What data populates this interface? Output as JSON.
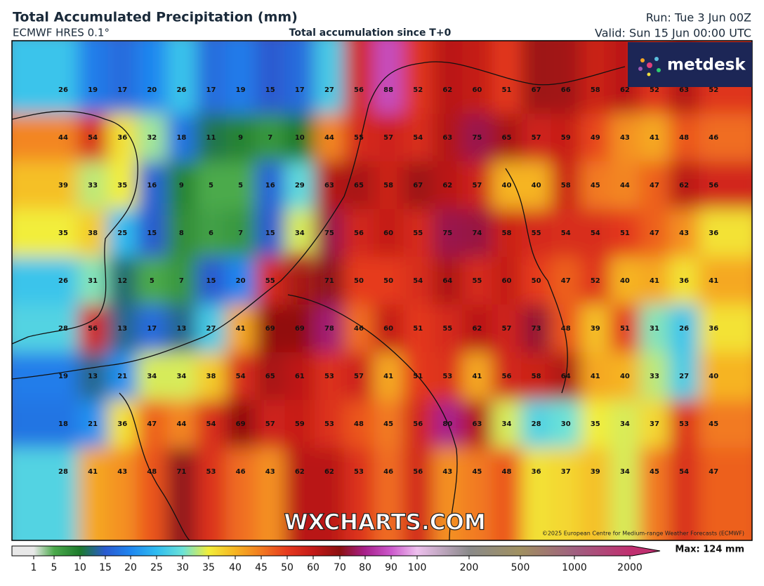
{
  "header": {
    "title": "Total Accumulated Precipitation (mm)",
    "model": "ECMWF HRES 0.1°",
    "subtitle": "Total accumulation since T+0",
    "run": "Run: Tue 3 Jun 00Z",
    "valid": "Valid: Sun 15 Jun 00:00 UTC"
  },
  "logo": "metdesk",
  "watermark": "WXCHARTS.COM",
  "copyright": "©2025 European Centre for Medium-range Weather Forecasts (ECMWF)",
  "grid": [
    [
      26,
      19,
      17,
      20,
      26,
      17,
      19,
      15,
      17,
      27,
      56,
      88,
      52,
      62,
      60,
      51,
      67,
      66,
      58,
      62,
      52,
      63,
      52
    ],
    [
      44,
      54,
      36,
      32,
      18,
      11,
      9,
      7,
      10,
      44,
      55,
      57,
      54,
      63,
      75,
      65,
      57,
      59,
      49,
      43,
      41,
      48,
      46
    ],
    [
      39,
      33,
      35,
      16,
      9,
      5,
      5,
      16,
      29,
      63,
      65,
      58,
      67,
      62,
      57,
      40,
      40,
      58,
      45,
      44,
      47,
      62,
      56
    ],
    [
      35,
      38,
      25,
      15,
      8,
      6,
      7,
      15,
      34,
      75,
      56,
      60,
      55,
      75,
      74,
      58,
      55,
      54,
      54,
      51,
      47,
      43,
      36
    ],
    [
      26,
      31,
      12,
      5,
      7,
      15,
      20,
      55,
      null,
      71,
      50,
      50,
      54,
      64,
      55,
      60,
      50,
      47,
      52,
      40,
      41,
      36,
      41
    ],
    [
      28,
      56,
      13,
      17,
      13,
      27,
      41,
      69,
      69,
      78,
      46,
      60,
      51,
      55,
      62,
      57,
      73,
      48,
      39,
      51,
      31,
      26,
      36
    ],
    [
      19,
      13,
      21,
      34,
      34,
      38,
      54,
      65,
      61,
      53,
      57,
      41,
      51,
      53,
      41,
      56,
      58,
      64,
      41,
      40,
      33,
      27,
      40
    ],
    [
      18,
      21,
      36,
      47,
      44,
      54,
      69,
      57,
      59,
      53,
      48,
      45,
      56,
      80,
      63,
      34,
      28,
      30,
      35,
      34,
      37,
      53,
      45
    ],
    [
      28,
      41,
      43,
      48,
      71,
      53,
      46,
      43,
      62,
      62,
      53,
      46,
      56,
      43,
      45,
      48,
      36,
      37,
      39,
      34,
      45,
      54,
      47
    ]
  ],
  "colorbar": {
    "ticks": [
      1,
      5,
      10,
      15,
      20,
      25,
      30,
      35,
      40,
      45,
      50,
      60,
      70,
      80,
      90,
      100,
      200,
      500,
      1000,
      2000
    ],
    "colors": [
      "#e8e8e8",
      "#4caa4c",
      "#1d7a2c",
      "#2a5ad0",
      "#1f86f0",
      "#2fbcf0",
      "#6ae2d8",
      "#f2ee3a",
      "#f6b422",
      "#f27a20",
      "#e63a1e",
      "#c41a18",
      "#8c1010",
      "#a8208c",
      "#cc58cc",
      "#eec0ee",
      "#8a8a8a",
      "#a09060",
      "#a06080",
      "#c03070"
    ],
    "max": "Max: 124 mm"
  }
}
